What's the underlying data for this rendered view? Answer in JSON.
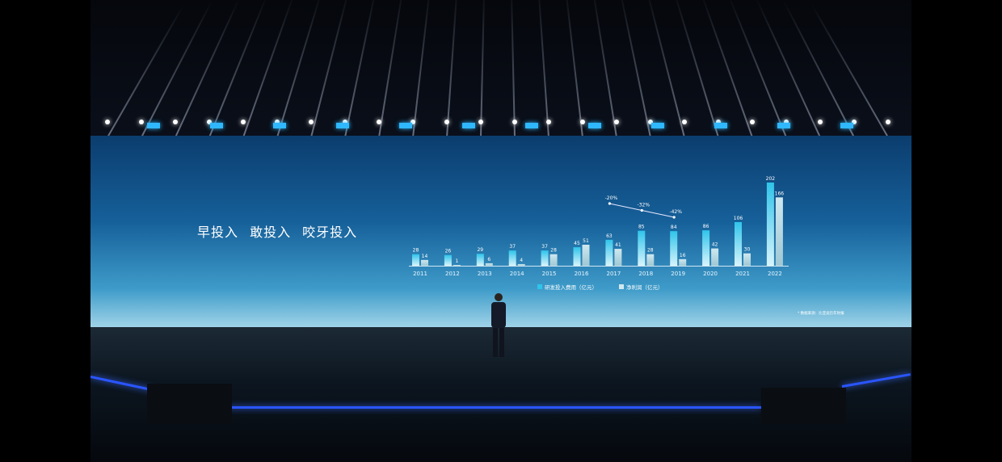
{
  "headline": "早投入  敢投入  咬牙投入",
  "footnote": "* 数据来源：比亚迪历年财报",
  "colors": {
    "rd_bar": "#2fc4ea",
    "profit_bar": "#cfe8ef",
    "led": "#2fb8ff",
    "floor_edge": "#2a55ff"
  },
  "chart_data": {
    "type": "bar",
    "categories": [
      "2011",
      "2012",
      "2013",
      "2014",
      "2015",
      "2016",
      "2017",
      "2018",
      "2019",
      "2020",
      "2021",
      "2022"
    ],
    "series": [
      {
        "name": "研发投入费用（亿元）",
        "values": [
          28,
          26,
          29,
          37,
          37,
          45,
          63,
          85,
          84,
          86,
          106,
          202
        ]
      },
      {
        "name": "净利润（亿元）",
        "values": [
          14,
          1,
          6,
          4,
          28,
          51,
          41,
          28,
          16,
          42,
          30,
          166
        ]
      }
    ],
    "annotation_line": {
      "categories": [
        "2017",
        "2018",
        "2019"
      ],
      "labels": [
        "-20%",
        "-32%",
        "-42%"
      ]
    },
    "legend_placement": "bottom",
    "grid": false,
    "ylim": [
      0,
      210
    ]
  }
}
